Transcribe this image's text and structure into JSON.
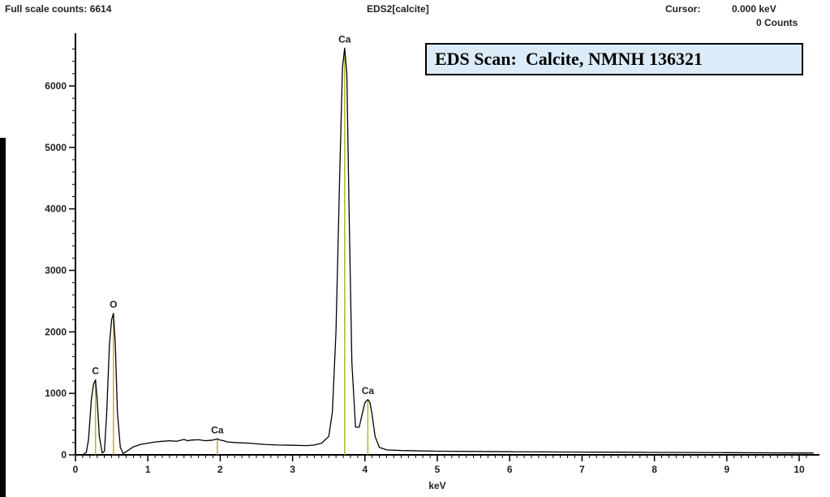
{
  "header": {
    "full_scale": "Full scale counts: 6614",
    "title": "EDS2[calcite]",
    "cursor_label": "Cursor:",
    "cursor_kev": "0.000 keV",
    "cursor_counts": "0 Counts"
  },
  "chart_data": {
    "type": "line",
    "title": "EDS Scan:  Calcite, NMNH 136321",
    "xlabel": "keV",
    "ylabel": "",
    "xlim": [
      0,
      10.2
    ],
    "ylim": [
      0,
      6900
    ],
    "x_ticks": [
      0,
      1,
      2,
      3,
      4,
      5,
      6,
      7,
      8,
      9,
      10
    ],
    "y_ticks": [
      0,
      1000,
      2000,
      3000,
      4000,
      5000,
      6000
    ],
    "grid": false,
    "line_color": "#000000",
    "marker_color": "#b5b52c",
    "series": [
      {
        "x": [
          0.0,
          0.1,
          0.15,
          0.18,
          0.22,
          0.25,
          0.277,
          0.3,
          0.33,
          0.37,
          0.4,
          0.43,
          0.47,
          0.5,
          0.525,
          0.55,
          0.58,
          0.62,
          0.66,
          0.7,
          0.8,
          0.9,
          1.0,
          1.1,
          1.2,
          1.3,
          1.4,
          1.5,
          1.55,
          1.6,
          1.7,
          1.8,
          1.9,
          1.96,
          2.0,
          2.05,
          2.1,
          2.2,
          2.4,
          2.6,
          2.8,
          3.0,
          3.2,
          3.3,
          3.4,
          3.5,
          3.55,
          3.6,
          3.65,
          3.69,
          3.72,
          3.75,
          3.78,
          3.82,
          3.87,
          3.92,
          3.96,
          4.0,
          4.04,
          4.07,
          4.1,
          4.14,
          4.2,
          4.3,
          4.5,
          5.0,
          5.5,
          6.0,
          6.5,
          7.0,
          7.5,
          8.0,
          8.5,
          9.0,
          9.5,
          10.0,
          10.2
        ],
        "y": [
          0,
          0,
          40,
          250,
          900,
          1150,
          1220,
          900,
          300,
          30,
          60,
          650,
          1800,
          2200,
          2300,
          1800,
          700,
          120,
          20,
          50,
          130,
          170,
          190,
          210,
          220,
          230,
          220,
          250,
          230,
          240,
          245,
          230,
          240,
          260,
          240,
          230,
          210,
          200,
          190,
          170,
          160,
          155,
          150,
          160,
          190,
          300,
          700,
          2000,
          4500,
          6300,
          6614,
          6200,
          4000,
          1500,
          450,
          450,
          650,
          850,
          900,
          850,
          650,
          300,
          120,
          80,
          70,
          60,
          55,
          50,
          48,
          45,
          43,
          40,
          38,
          35,
          33,
          30,
          30
        ]
      }
    ],
    "annotations": [
      {
        "label": "C",
        "x": 0.277,
        "y": 1220
      },
      {
        "label": "O",
        "x": 0.525,
        "y": 2300
      },
      {
        "label": "Ca",
        "x": 1.96,
        "y": 260
      },
      {
        "label": "Ca",
        "x": 3.72,
        "y": 6614
      },
      {
        "label": "Ca",
        "x": 4.04,
        "y": 900
      }
    ]
  }
}
